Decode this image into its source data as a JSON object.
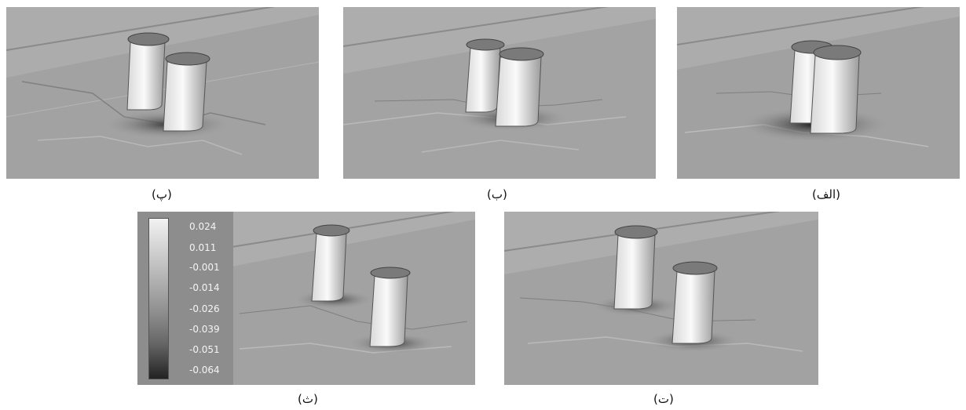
{
  "panels": [
    {
      "id": "alef",
      "caption": "(الف)"
    },
    {
      "id": "be",
      "caption": "(ب)"
    },
    {
      "id": "pe",
      "caption": "(پ)"
    },
    {
      "id": "te",
      "caption": "(ت)"
    },
    {
      "id": "se",
      "caption": "(ث)"
    }
  ],
  "colorbar": {
    "ticks": [
      "0.024",
      "0.011",
      "-0.001",
      "-0.014",
      "-0.026",
      "-0.039",
      "-0.051",
      "-0.064"
    ]
  }
}
